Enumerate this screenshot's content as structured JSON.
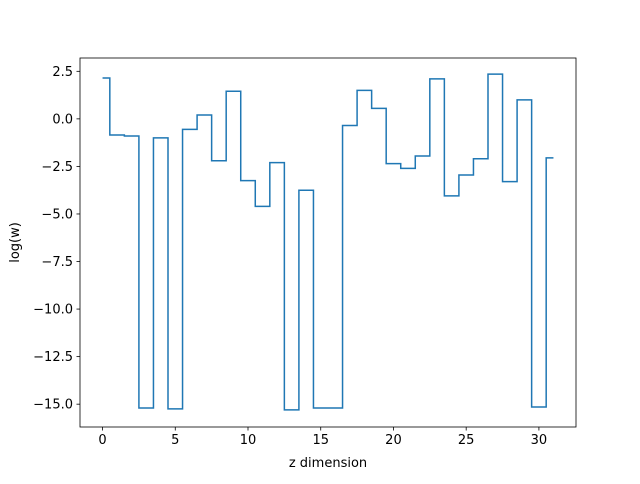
{
  "chart_data": {
    "type": "line",
    "drawstyle": "steps-mid",
    "title": "",
    "xlabel": "z dimension",
    "ylabel": "log(w)",
    "xlim": [
      -1.55,
      32.55
    ],
    "ylim": [
      -16.2,
      3.2
    ],
    "xticks": [
      0,
      5,
      10,
      15,
      20,
      25,
      30
    ],
    "yticks": [
      2.5,
      0.0,
      -2.5,
      -5.0,
      -7.5,
      -10.0,
      -12.5,
      -15.0
    ],
    "xtick_labels": [
      "0",
      "5",
      "10",
      "15",
      "20",
      "25",
      "30"
    ],
    "ytick_labels": [
      "2.5",
      "0.0",
      "−2.5",
      "−5.0",
      "−7.5",
      "−10.0",
      "−12.5",
      "−15.0"
    ],
    "grid": false,
    "series": [
      {
        "color": "#1f77b4",
        "x": [
          0,
          1,
          2,
          3,
          4,
          5,
          6,
          7,
          8,
          9,
          10,
          11,
          12,
          13,
          14,
          15,
          16,
          17,
          18,
          19,
          20,
          21,
          22,
          23,
          24,
          25,
          26,
          27,
          28,
          29,
          30,
          31
        ],
        "y": [
          2.15,
          -0.85,
          -0.9,
          -15.2,
          -1.0,
          -15.25,
          -0.55,
          0.2,
          -2.2,
          1.45,
          -3.25,
          -4.6,
          -2.3,
          -15.3,
          -3.75,
          -15.2,
          -15.2,
          -0.35,
          1.5,
          0.55,
          -2.35,
          -2.6,
          -1.95,
          2.1,
          -4.05,
          -2.95,
          -2.1,
          2.35,
          -3.3,
          1.0,
          -15.15,
          -2.05
        ]
      }
    ]
  }
}
